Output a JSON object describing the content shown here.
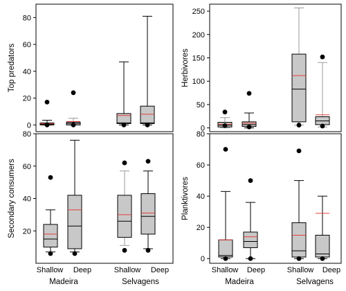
{
  "figure": {
    "x_categories": [
      "Shallow",
      "Deep"
    ],
    "sites": [
      "Madeira",
      "Selvagens"
    ],
    "colors": {
      "box_fill": "#c8c8c8",
      "box_stroke": "#000000",
      "whisker_gray": "#9a9a9a",
      "mean_line": "#e0403a",
      "outlier": "#000000"
    }
  },
  "chart_data": [
    {
      "type": "box",
      "id": "top",
      "ylabel": "Top predators",
      "ylim": [
        -5,
        90
      ],
      "yticks": [
        0,
        20,
        40,
        60,
        80
      ],
      "boxes": [
        {
          "site": "Madeira",
          "depth": "Shallow",
          "whisker_low": 0,
          "q1": 0,
          "median": 0.5,
          "q3": 1.5,
          "whisker_high": 3.5,
          "mean": 1.0,
          "outliers": [
            17,
            0
          ],
          "whisker_color": "black"
        },
        {
          "site": "Madeira",
          "depth": "Deep",
          "whisker_low": 0,
          "q1": 0,
          "median": 1,
          "q3": 2,
          "whisker_high": 5,
          "mean": 2.5,
          "outliers": [
            24,
            0
          ],
          "whisker_color": "gray"
        },
        {
          "site": "Selvagens",
          "depth": "Shallow",
          "whisker_low": 0,
          "q1": 1,
          "median": 1.5,
          "q3": 8.5,
          "whisker_high": 47,
          "mean": 7,
          "outliers": [
            0
          ],
          "whisker_color": "black"
        },
        {
          "site": "Selvagens",
          "depth": "Deep",
          "whisker_low": 0,
          "q1": 1,
          "median": 1.5,
          "q3": 14,
          "whisker_high": 81,
          "mean": 8,
          "outliers": [
            0
          ],
          "whisker_color": "black"
        }
      ]
    },
    {
      "type": "box",
      "id": "herb",
      "ylabel": "Herbivores",
      "ylim": [
        -8,
        265
      ],
      "yticks": [
        0,
        50,
        100,
        150,
        200,
        250
      ],
      "boxes": [
        {
          "site": "Madeira",
          "depth": "Shallow",
          "whisker_low": 0,
          "q1": 2,
          "median": 6,
          "q3": 12,
          "whisker_high": 22,
          "mean": 8,
          "outliers": [
            34,
            5
          ],
          "whisker_color": "gray"
        },
        {
          "site": "Madeira",
          "depth": "Deep",
          "whisker_low": 0,
          "q1": 3,
          "median": 7,
          "q3": 13,
          "whisker_high": 32,
          "mean": 10,
          "outliers": [
            74,
            2
          ],
          "whisker_color": "black"
        },
        {
          "site": "Selvagens",
          "depth": "Shallow",
          "whisker_low": 6,
          "q1": 13,
          "median": 83,
          "q3": 158,
          "whisker_high": 257,
          "mean": 112,
          "outliers": [
            6
          ],
          "whisker_color": "gray"
        },
        {
          "site": "Selvagens",
          "depth": "Deep",
          "whisker_low": 2,
          "q1": 7,
          "median": 15,
          "q3": 24,
          "whisker_high": 140,
          "mean": 28,
          "outliers": [
            152,
            4
          ],
          "whisker_color": "gray"
        }
      ]
    },
    {
      "type": "box",
      "id": "sec",
      "ylabel": "Secondary consumers",
      "ylim": [
        0,
        80
      ],
      "yticks": [
        20,
        40,
        60,
        80
      ],
      "boxes": [
        {
          "site": "Madeira",
          "depth": "Shallow",
          "whisker_low": 7,
          "q1": 10,
          "median": 15,
          "q3": 24,
          "whisker_high": 33,
          "mean": 18,
          "outliers": [
            53,
            6
          ],
          "whisker_color": "black"
        },
        {
          "site": "Madeira",
          "depth": "Deep",
          "whisker_low": 7,
          "q1": 9,
          "median": 23,
          "q3": 42,
          "whisker_high": 76,
          "mean": 33,
          "outliers": [
            6
          ],
          "whisker_color": "black"
        },
        {
          "site": "Selvagens",
          "depth": "Shallow",
          "whisker_low": 11,
          "q1": 16,
          "median": 26,
          "q3": 42,
          "whisker_high": 57,
          "mean": 30,
          "outliers": [
            62,
            8
          ],
          "whisker_color": "gray"
        },
        {
          "site": "Selvagens",
          "depth": "Deep",
          "whisker_low": 9,
          "q1": 18,
          "median": 29,
          "q3": 43,
          "whisker_high": 57,
          "mean": 31,
          "outliers": [
            63,
            8
          ],
          "whisker_color": "black"
        }
      ]
    },
    {
      "type": "box",
      "id": "plank",
      "ylabel": "Planktivores",
      "ylim": [
        -3,
        80
      ],
      "yticks": [
        0,
        20,
        40,
        60,
        80
      ],
      "boxes": [
        {
          "site": "Madeira",
          "depth": "Shallow",
          "whisker_low": 0,
          "q1": 1,
          "median": 2,
          "q3": 12,
          "whisker_high": 43,
          "mean": 12,
          "outliers": [
            70,
            0
          ],
          "whisker_color": "black"
        },
        {
          "site": "Madeira",
          "depth": "Deep",
          "whisker_low": 0,
          "q1": 7,
          "median": 11,
          "q3": 17,
          "whisker_high": 36,
          "mean": 14,
          "outliers": [
            50,
            0
          ],
          "whisker_color": "black"
        },
        {
          "site": "Selvagens",
          "depth": "Shallow",
          "whisker_low": 0,
          "q1": 1,
          "median": 5,
          "q3": 23,
          "whisker_high": 50,
          "mean": 15,
          "outliers": [
            69,
            0
          ],
          "whisker_color": "black"
        },
        {
          "site": "Selvagens",
          "depth": "Deep",
          "whisker_low": 0,
          "q1": 1,
          "median": 3,
          "q3": 15,
          "whisker_high": 40,
          "mean": 29,
          "outliers": [
            0
          ],
          "whisker_color": "black"
        }
      ]
    }
  ]
}
